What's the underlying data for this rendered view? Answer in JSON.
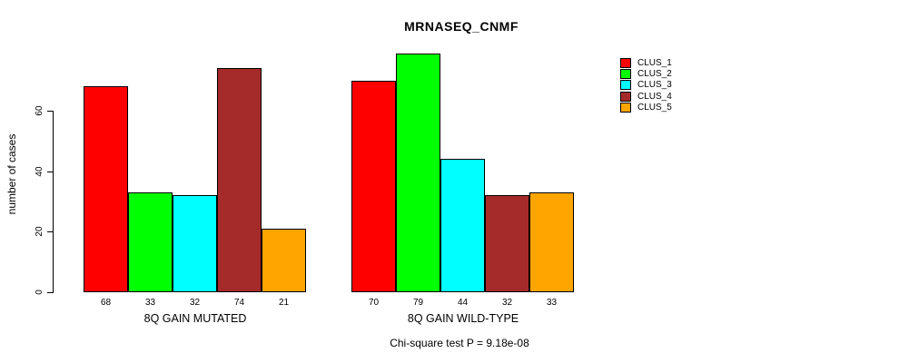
{
  "chart_data": {
    "type": "bar",
    "title": "MRNASEQ_CNMF",
    "ylabel": "number of cases",
    "yticks": [
      0,
      20,
      40,
      60
    ],
    "ylim": [
      0,
      80
    ],
    "grid": false,
    "legend_position": "right",
    "categories": [
      "8Q GAIN MUTATED",
      "8Q GAIN WILD-TYPE"
    ],
    "series": [
      {
        "name": "CLUS_1",
        "color": "#FF0000",
        "values": [
          68,
          70
        ]
      },
      {
        "name": "CLUS_2",
        "color": "#00FF00",
        "values": [
          33,
          79
        ]
      },
      {
        "name": "CLUS_3",
        "color": "#00FFFF",
        "values": [
          32,
          44
        ]
      },
      {
        "name": "CLUS_4",
        "color": "#A52A2A",
        "values": [
          74,
          32
        ]
      },
      {
        "name": "CLUS_5",
        "color": "#FFA500",
        "values": [
          21,
          33
        ]
      }
    ],
    "bar_value_labels_shown": true,
    "annotation": "Chi-square test P = 9.18e-08"
  }
}
